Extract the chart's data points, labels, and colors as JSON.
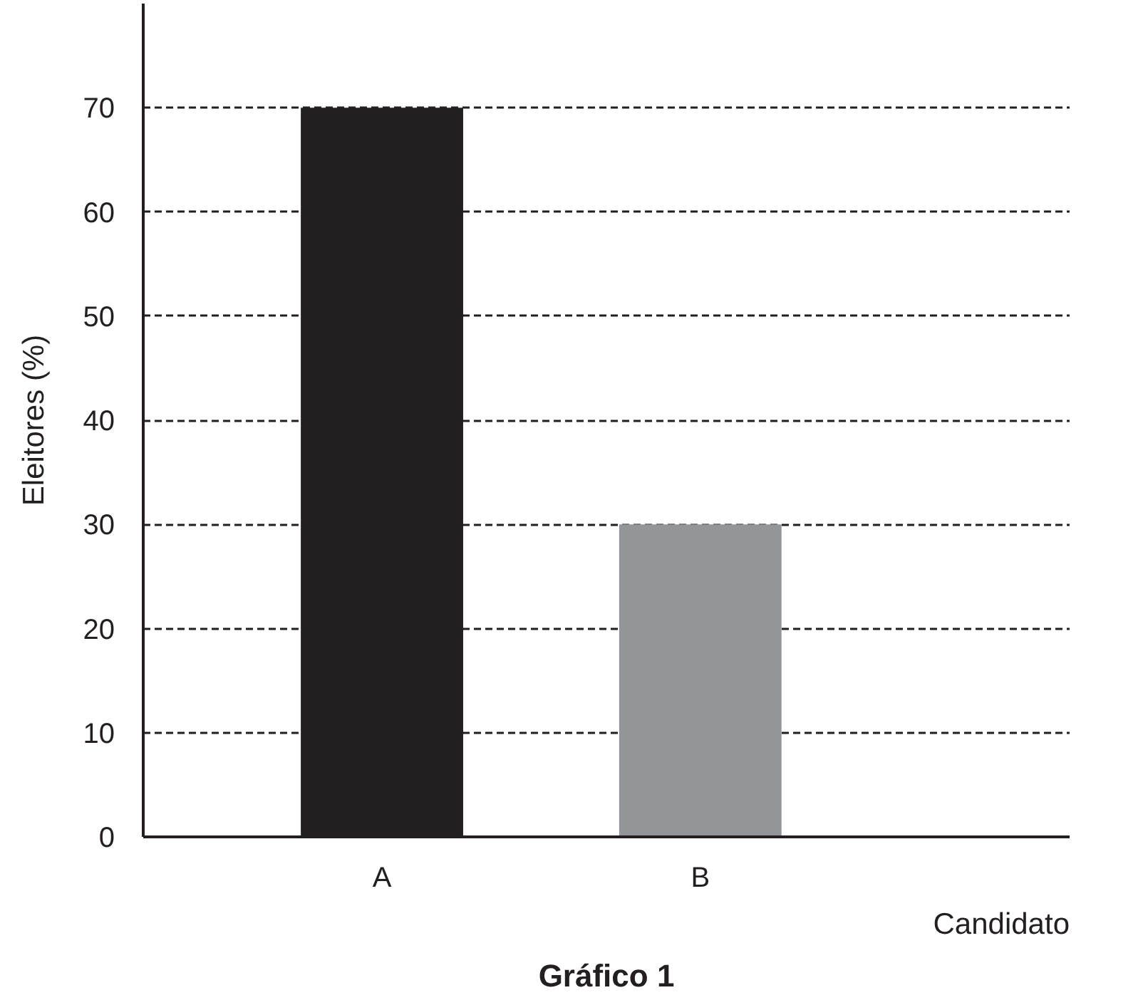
{
  "chart_data": {
    "type": "bar",
    "title": "Gráfico 1",
    "xlabel": "Candidato",
    "ylabel": "Eleitores (%)",
    "categories": [
      "A",
      "B"
    ],
    "values": [
      70,
      30
    ],
    "colors": [
      "#231f20",
      "#939598"
    ],
    "ylim": [
      0,
      80
    ],
    "yticks": [
      0,
      10,
      20,
      30,
      40,
      50,
      60,
      70
    ],
    "grid": "y"
  }
}
